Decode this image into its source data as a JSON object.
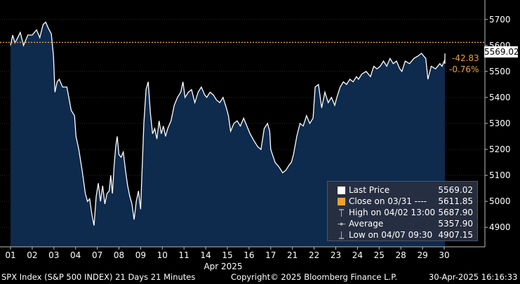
{
  "chart_data": {
    "type": "area",
    "x": [
      "01",
      "02",
      "03",
      "04",
      "07",
      "08",
      "09",
      "10",
      "11",
      "14",
      "15",
      "16",
      "17",
      "21",
      "22",
      "23",
      "24",
      "25",
      "28",
      "29",
      "30"
    ],
    "month_label": "Apr 2025",
    "series": [
      {
        "name": "Last Price",
        "points": [
          [
            0.0,
            5600
          ],
          [
            0.1,
            5640
          ],
          [
            0.2,
            5610
          ],
          [
            0.3,
            5625
          ],
          [
            0.45,
            5650
          ],
          [
            0.6,
            5600
          ],
          [
            0.8,
            5640
          ],
          [
            1.0,
            5640
          ],
          [
            1.2,
            5660
          ],
          [
            1.35,
            5630
          ],
          [
            1.5,
            5680
          ],
          [
            1.62,
            5690
          ],
          [
            1.75,
            5665
          ],
          [
            1.88,
            5645
          ],
          [
            1.98,
            5560
          ],
          [
            2.05,
            5420
          ],
          [
            2.15,
            5460
          ],
          [
            2.25,
            5470
          ],
          [
            2.4,
            5440
          ],
          [
            2.6,
            5440
          ],
          [
            2.8,
            5350
          ],
          [
            2.95,
            5330
          ],
          [
            3.02,
            5250
          ],
          [
            3.15,
            5200
          ],
          [
            3.3,
            5120
          ],
          [
            3.45,
            5030
          ],
          [
            3.55,
            5000
          ],
          [
            3.65,
            5010
          ],
          [
            3.75,
            4950
          ],
          [
            3.85,
            4907
          ],
          [
            3.95,
            5020
          ],
          [
            4.05,
            5070
          ],
          [
            4.15,
            5000
          ],
          [
            4.25,
            5060
          ],
          [
            4.35,
            4990
          ],
          [
            4.45,
            5030
          ],
          [
            4.55,
            5040
          ],
          [
            4.62,
            5100
          ],
          [
            4.7,
            5030
          ],
          [
            4.78,
            5140
          ],
          [
            4.85,
            5210
          ],
          [
            4.92,
            5250
          ],
          [
            5.0,
            5180
          ],
          [
            5.1,
            5170
          ],
          [
            5.2,
            5190
          ],
          [
            5.3,
            5120
          ],
          [
            5.4,
            5060
          ],
          [
            5.5,
            5020
          ],
          [
            5.6,
            4990
          ],
          [
            5.7,
            4930
          ],
          [
            5.8,
            5000
          ],
          [
            5.9,
            5040
          ],
          [
            6.0,
            4970
          ],
          [
            6.08,
            5150
          ],
          [
            6.15,
            5300
          ],
          [
            6.25,
            5430
          ],
          [
            6.35,
            5460
          ],
          [
            6.45,
            5340
          ],
          [
            6.55,
            5260
          ],
          [
            6.65,
            5280
          ],
          [
            6.75,
            5240
          ],
          [
            6.85,
            5310
          ],
          [
            6.95,
            5260
          ],
          [
            7.05,
            5290
          ],
          [
            7.15,
            5250
          ],
          [
            7.25,
            5280
          ],
          [
            7.4,
            5310
          ],
          [
            7.55,
            5370
          ],
          [
            7.7,
            5400
          ],
          [
            7.85,
            5420
          ],
          [
            7.95,
            5460
          ],
          [
            8.05,
            5400
          ],
          [
            8.2,
            5420
          ],
          [
            8.35,
            5430
          ],
          [
            8.5,
            5380
          ],
          [
            8.65,
            5420
          ],
          [
            8.8,
            5440
          ],
          [
            8.95,
            5410
          ],
          [
            9.05,
            5400
          ],
          [
            9.2,
            5420
          ],
          [
            9.35,
            5410
          ],
          [
            9.5,
            5390
          ],
          [
            9.65,
            5380
          ],
          [
            9.8,
            5400
          ],
          [
            9.95,
            5360
          ],
          [
            10.05,
            5330
          ],
          [
            10.15,
            5270
          ],
          [
            10.3,
            5300
          ],
          [
            10.45,
            5310
          ],
          [
            10.6,
            5290
          ],
          [
            10.75,
            5320
          ],
          [
            10.9,
            5290
          ],
          [
            11.05,
            5260
          ],
          [
            11.25,
            5230
          ],
          [
            11.4,
            5210
          ],
          [
            11.55,
            5200
          ],
          [
            11.7,
            5280
          ],
          [
            11.85,
            5300
          ],
          [
            11.95,
            5270
          ],
          [
            12.0,
            5200
          ],
          [
            12.2,
            5150
          ],
          [
            12.4,
            5130
          ],
          [
            12.55,
            5110
          ],
          [
            12.7,
            5120
          ],
          [
            12.85,
            5140
          ],
          [
            12.95,
            5150
          ],
          [
            13.05,
            5180
          ],
          [
            13.2,
            5250
          ],
          [
            13.35,
            5300
          ],
          [
            13.5,
            5290
          ],
          [
            13.65,
            5330
          ],
          [
            13.8,
            5300
          ],
          [
            13.95,
            5320
          ],
          [
            14.05,
            5440
          ],
          [
            14.2,
            5450
          ],
          [
            14.35,
            5360
          ],
          [
            14.5,
            5420
          ],
          [
            14.65,
            5380
          ],
          [
            14.8,
            5400
          ],
          [
            14.95,
            5370
          ],
          [
            15.05,
            5400
          ],
          [
            15.2,
            5440
          ],
          [
            15.35,
            5460
          ],
          [
            15.5,
            5450
          ],
          [
            15.65,
            5470
          ],
          [
            15.8,
            5460
          ],
          [
            15.95,
            5480
          ],
          [
            16.05,
            5470
          ],
          [
            16.2,
            5490
          ],
          [
            16.4,
            5500
          ],
          [
            16.6,
            5480
          ],
          [
            16.75,
            5520
          ],
          [
            16.9,
            5510
          ],
          [
            17.05,
            5520
          ],
          [
            17.2,
            5540
          ],
          [
            17.35,
            5520
          ],
          [
            17.5,
            5550
          ],
          [
            17.65,
            5530
          ],
          [
            17.8,
            5540
          ],
          [
            17.95,
            5510
          ],
          [
            18.05,
            5500
          ],
          [
            18.2,
            5540
          ],
          [
            18.4,
            5530
          ],
          [
            18.6,
            5550
          ],
          [
            18.8,
            5560
          ],
          [
            18.95,
            5570
          ],
          [
            19.05,
            5560
          ],
          [
            19.15,
            5550
          ],
          [
            19.25,
            5470
          ],
          [
            19.4,
            5520
          ],
          [
            19.6,
            5510
          ],
          [
            19.8,
            5530
          ],
          [
            19.9,
            5520
          ],
          [
            20.0,
            5540
          ],
          [
            20.15,
            5530
          ],
          [
            20.3,
            5560
          ],
          [
            20.4,
            5569
          ]
        ]
      }
    ],
    "reference_line": {
      "name": "Close on 03/31",
      "value": 5611.85
    },
    "ylim": [
      4825,
      5775
    ],
    "yticks": [
      4900,
      5000,
      5100,
      5200,
      5300,
      5400,
      5500,
      5600,
      5700
    ],
    "last_value_label": "5569.02",
    "change_label": "-42.83",
    "change_pct_label": "-0.76%",
    "legend": [
      {
        "label": "Last Price",
        "value": "5569.02",
        "symbol": "white-square"
      },
      {
        "label": "Close on 03/31 ----",
        "value": "5611.85",
        "symbol": "orange-square"
      },
      {
        "label": "High on 04/02 13:00",
        "value": "5687.90",
        "symbol": "high-marker"
      },
      {
        "label": "Average",
        "value": "5357.90",
        "symbol": "average-marker"
      },
      {
        "label": "Low on 04/07 09:30",
        "value": "4907.15",
        "symbol": "low-marker"
      }
    ],
    "colors": {
      "area": "#0e2a4d",
      "line": "#ffffff",
      "reference": "#f0a030",
      "background": "#000000"
    }
  },
  "footer": {
    "index_label": "SPX Index (S&P 500 INDEX) 21 Days 21 Minutes",
    "copyright": "Copyright© 2025 Bloomberg Finance L.P.",
    "timestamp": "30-Apr-2025 16:16:33"
  }
}
